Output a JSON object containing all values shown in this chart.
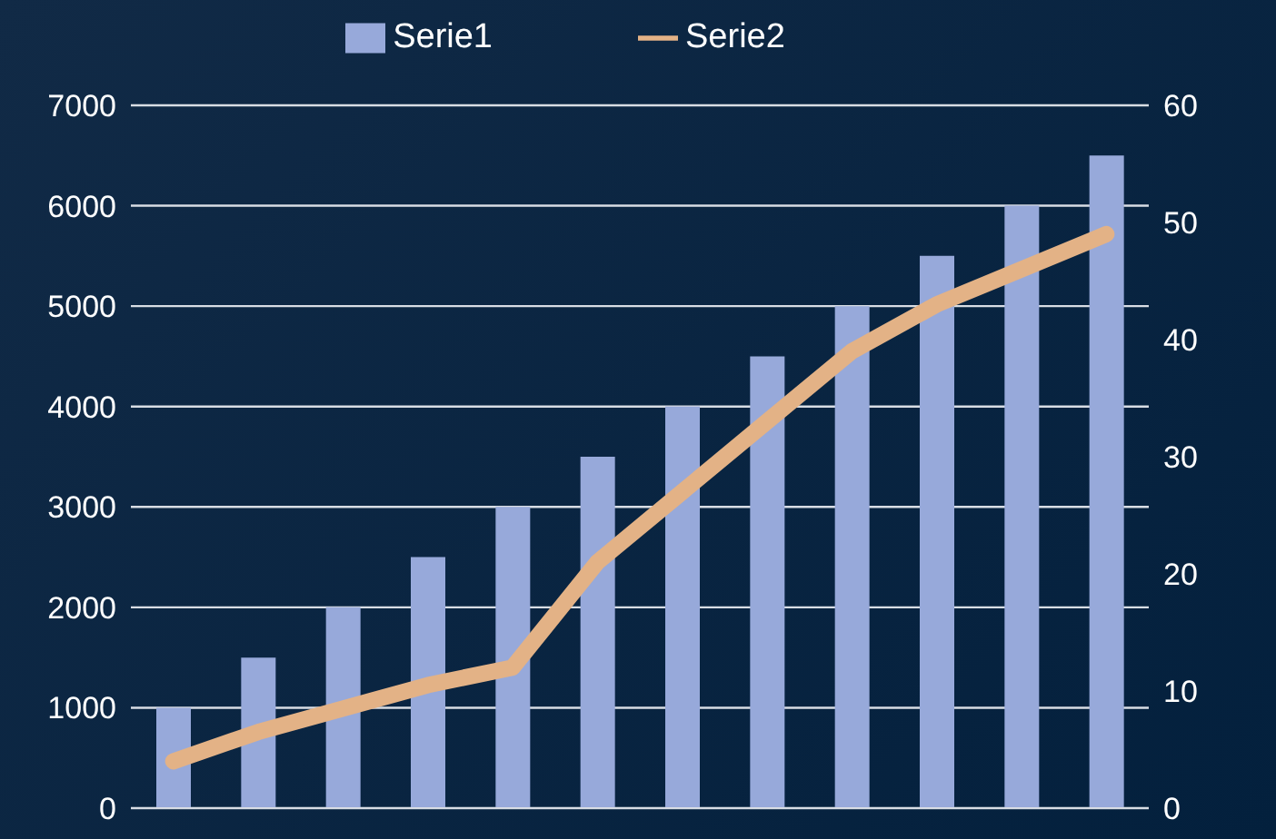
{
  "chart_data": {
    "type": "bar",
    "categories": [
      null,
      null,
      null,
      null,
      null,
      null,
      null,
      null,
      null,
      null,
      null,
      null
    ],
    "series": [
      {
        "name": "Serie1",
        "color": "#97a9da",
        "values": [
          1000,
          1500,
          2000,
          2500,
          3000,
          3500,
          4000,
          4500,
          5000,
          5500,
          6000,
          6500
        ]
      },
      {
        "name": "Serie2",
        "type": "line",
        "axis": "y2",
        "color": "#e3b286",
        "values": [
          4,
          6.5,
          8.5,
          10.5,
          12,
          21,
          27,
          33,
          39,
          43,
          46,
          49
        ]
      }
    ],
    "ylim": [
      0,
      7000
    ],
    "yticks": [
      0,
      1000,
      2000,
      3000,
      4000,
      5000,
      6000,
      7000
    ],
    "y2lim": [
      0,
      60
    ],
    "y2ticks": [
      0,
      10,
      20,
      30,
      40,
      50,
      60
    ],
    "grid": "y",
    "legend": "top",
    "marker": "none",
    "line_style": "solid"
  }
}
